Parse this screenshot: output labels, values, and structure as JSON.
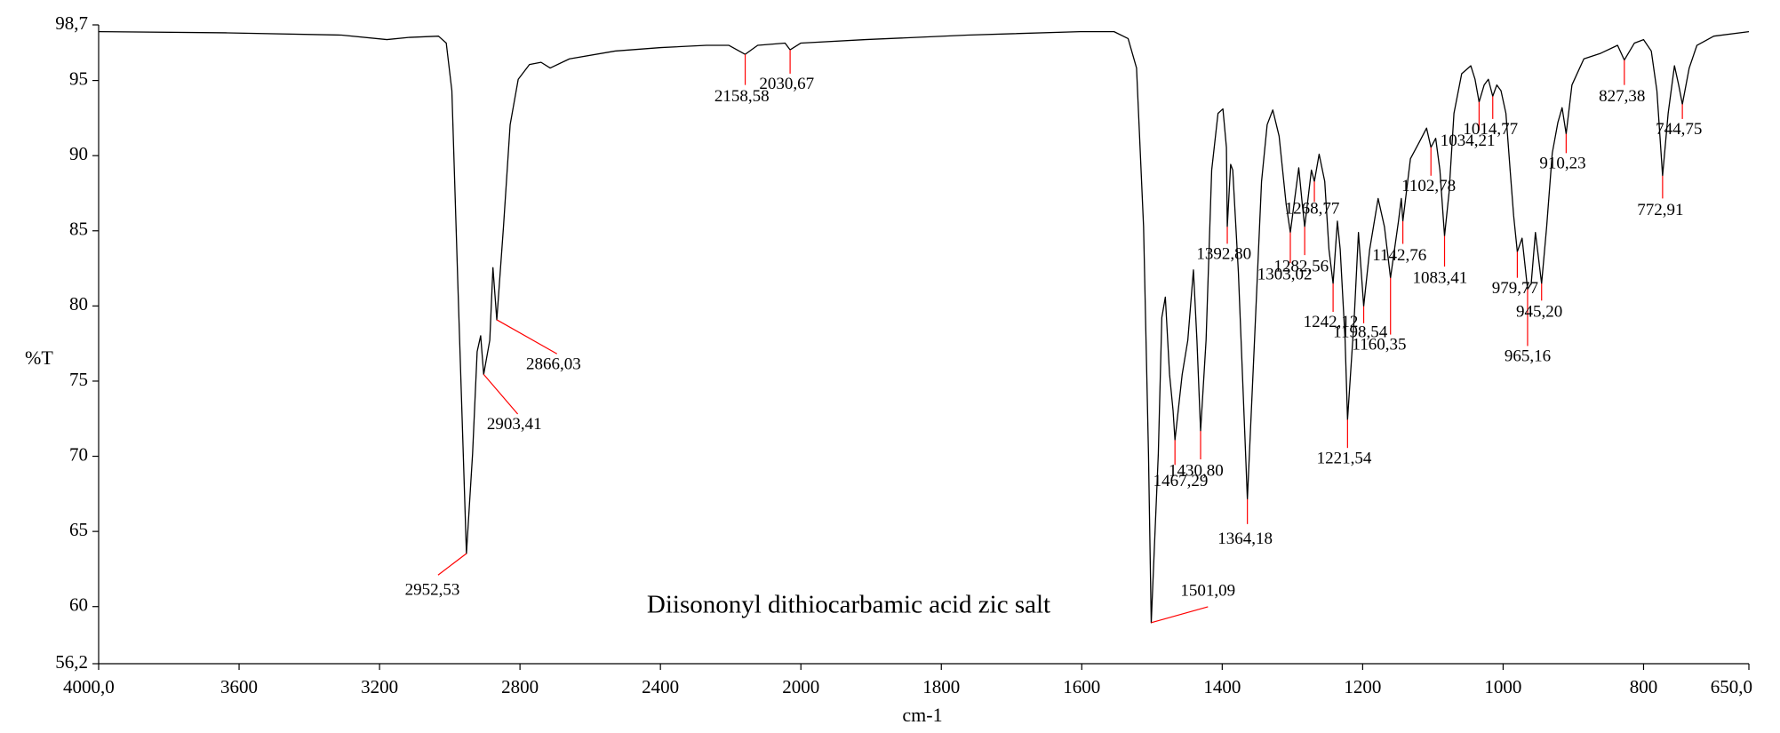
{
  "chart_data": {
    "type": "line",
    "annotation": "Diisononyl dithiocarbamic acid zic salt",
    "x_label": "cm-1",
    "y_label": "%T",
    "xlim": [
      4000,
      650
    ],
    "ylim": [
      56.2,
      98.7
    ],
    "x_scale": {
      "break": 2000,
      "ratio": 2
    },
    "xticks": [
      {
        "value": 4000,
        "label": "4000,0"
      },
      3600,
      3200,
      2800,
      2400,
      2000,
      1800,
      1600,
      1400,
      1200,
      1000,
      800,
      {
        "value": 650,
        "label": "650,0"
      }
    ],
    "yticks": [
      {
        "value": 98.7,
        "label": "98,7"
      },
      95,
      90,
      85,
      80,
      75,
      70,
      65,
      60,
      {
        "value": 56.2,
        "label": "56,2"
      }
    ],
    "grid": false,
    "color": "#000000",
    "peak_color": "#ff0000",
    "x": [
      4000,
      3633,
      3308,
      3179,
      3114,
      3032,
      3010,
      2994,
      2977,
      2952.53,
      2935,
      2922,
      2912,
      2903.41,
      2886,
      2877,
      2866.03,
      2847,
      2828,
      2805,
      2773,
      2740,
      2714,
      2659,
      2529,
      2399,
      2269,
      2205,
      2158.58,
      2123,
      2045,
      2030.67,
      2000,
      1908,
      1763,
      1602,
      1554,
      1534,
      1522,
      1512,
      1505,
      1501.09,
      1491,
      1486,
      1481,
      1475,
      1470,
      1467.29,
      1457,
      1449,
      1441,
      1436,
      1430.8,
      1423,
      1415,
      1406,
      1399,
      1394,
      1392.8,
      1388,
      1385,
      1377,
      1368,
      1364.18,
      1354,
      1344,
      1336,
      1328,
      1319,
      1309,
      1303.02,
      1291,
      1286,
      1282.56,
      1273,
      1268.77,
      1262,
      1254,
      1248,
      1242.12,
      1236,
      1232,
      1225,
      1221.54,
      1212,
      1206,
      1198.54,
      1190,
      1178,
      1169,
      1160.35,
      1149,
      1145,
      1142.76,
      1132,
      1119,
      1109,
      1102.78,
      1096,
      1090,
      1083.41,
      1077,
      1070,
      1059,
      1046,
      1040,
      1034.21,
      1027,
      1021,
      1014.77,
      1009,
      1003,
      996,
      990,
      985,
      979.77,
      973,
      965.16,
      960,
      954,
      945.2,
      938,
      930,
      922,
      916,
      910.23,
      902,
      885,
      861,
      837,
      827.38,
      813,
      800,
      789,
      781,
      772.91,
      765,
      756,
      750,
      744.75,
      735,
      724,
      700,
      650
    ],
    "values": [
      98.25,
      98.17,
      98.02,
      97.72,
      97.87,
      97.95,
      97.49,
      94.32,
      81.5,
      63.53,
      70.17,
      76.96,
      78.02,
      75.45,
      77.72,
      82.55,
      79.08,
      85.27,
      92.06,
      95.08,
      96.06,
      96.21,
      95.83,
      96.44,
      96.96,
      97.19,
      97.34,
      97.34,
      96.74,
      97.34,
      97.49,
      97.04,
      97.49,
      97.72,
      98.02,
      98.25,
      98.25,
      97.79,
      95.83,
      85.27,
      70.17,
      58.93,
      70.17,
      79.23,
      80.59,
      75.45,
      73.04,
      71.08,
      75.45,
      77.72,
      82.4,
      77.72,
      71.68,
      77.72,
      89.04,
      92.81,
      93.11,
      90.55,
      85.27,
      89.42,
      89.04,
      82.25,
      71.68,
      67.15,
      77.72,
      88.28,
      92.06,
      93.04,
      91.3,
      86.78,
      84.89,
      89.19,
      86.78,
      85.27,
      89.04,
      88.28,
      90.1,
      88.28,
      83.76,
      81.49,
      85.64,
      83.76,
      77.72,
      72.44,
      79.23,
      84.89,
      79.98,
      83.76,
      87.15,
      85.27,
      81.87,
      85.64,
      87.15,
      85.64,
      89.79,
      90.93,
      91.83,
      90.55,
      91.15,
      89.04,
      84.66,
      87.53,
      92.81,
      95.45,
      95.98,
      95.08,
      93.57,
      94.7,
      95.08,
      93.95,
      94.7,
      94.32,
      92.81,
      89.04,
      86.0,
      83.61,
      84.51,
      81.11,
      81.49,
      84.89,
      81.49,
      85.27,
      90.17,
      92.21,
      93.19,
      91.45,
      94.7,
      96.44,
      96.81,
      97.34,
      96.36,
      97.49,
      97.72,
      96.96,
      94.32,
      88.66,
      92.81,
      95.98,
      94.7,
      93.42,
      95.83,
      97.34,
      97.95,
      98.25
    ],
    "peaks": [
      {
        "x": 2952.53,
        "y": 63.53,
        "label": "2952,53"
      },
      {
        "x": 2903.41,
        "y": 75.45,
        "label": "2903,41"
      },
      {
        "x": 2866.03,
        "y": 79.08,
        "label": "2866,03"
      },
      {
        "x": 2158.58,
        "y": 96.74,
        "label": "2158,58"
      },
      {
        "x": 2030.67,
        "y": 97.04,
        "label": "2030,67"
      },
      {
        "x": 1501.09,
        "y": 58.93,
        "label": "1501,09"
      },
      {
        "x": 1467.29,
        "y": 71.08,
        "label": "1467,29"
      },
      {
        "x": 1430.8,
        "y": 71.68,
        "label": "1430,80"
      },
      {
        "x": 1364.18,
        "y": 67.15,
        "label": "1364,18"
      },
      {
        "x": 1392.8,
        "y": 85.27,
        "label": "1392,80"
      },
      {
        "x": 1303.02,
        "y": 84.89,
        "label": "1303,02"
      },
      {
        "x": 1282.56,
        "y": 85.27,
        "label": "1282,56"
      },
      {
        "x": 1268.77,
        "y": 88.28,
        "label": "1268,77"
      },
      {
        "x": 1242.12,
        "y": 81.49,
        "label": "1242,12"
      },
      {
        "x": 1221.54,
        "y": 72.44,
        "label": "1221,54"
      },
      {
        "x": 1198.54,
        "y": 79.98,
        "label": "1198,54"
      },
      {
        "x": 1160.35,
        "y": 81.87,
        "label": "1160,35"
      },
      {
        "x": 1142.76,
        "y": 85.64,
        "label": "1142,76"
      },
      {
        "x": 1102.78,
        "y": 90.55,
        "label": "1102,78"
      },
      {
        "x": 1083.41,
        "y": 84.66,
        "label": "1083,41"
      },
      {
        "x": 1034.21,
        "y": 93.57,
        "label": "1034,21"
      },
      {
        "x": 1014.77,
        "y": 93.95,
        "label": "1014,77"
      },
      {
        "x": 979.77,
        "y": 83.61,
        "label": "979,77"
      },
      {
        "x": 965.16,
        "y": 81.11,
        "label": "965,16"
      },
      {
        "x": 945.2,
        "y": 81.49,
        "label": "945,20"
      },
      {
        "x": 910.23,
        "y": 91.45,
        "label": "910,23"
      },
      {
        "x": 827.38,
        "y": 96.36,
        "label": "827,38"
      },
      {
        "x": 772.91,
        "y": 88.66,
        "label": "772,91"
      },
      {
        "x": 744.75,
        "y": 93.42,
        "label": "744,75"
      }
    ]
  }
}
